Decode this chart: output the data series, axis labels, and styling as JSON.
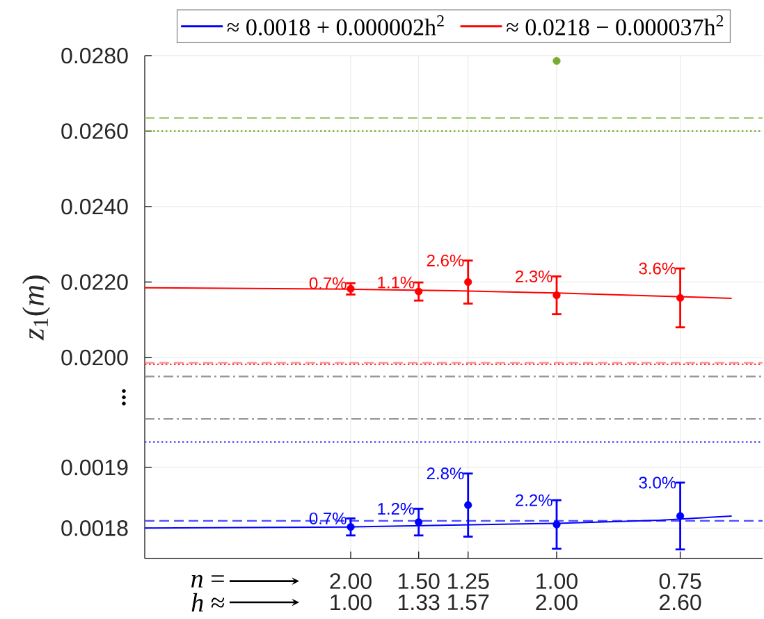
{
  "chart_data": [
    {
      "type": "scatter",
      "ylabel": "*z*$_{1}$(*m*)",
      "xlim": [
        0,
        3
      ],
      "xticks": [
        {
          "value": 1,
          "label": null
        },
        {
          "value": 1.33,
          "label": null
        },
        {
          "value": 1.57,
          "label": null
        },
        {
          "value": 2,
          "label": null
        },
        {
          "value": 2.6,
          "label": null
        }
      ],
      "ylim": [
        0.0195,
        0.028
      ],
      "yticks": [
        {
          "value": 0.02,
          "label": "0.0200"
        },
        {
          "value": 0.022,
          "label": "0.0220"
        },
        {
          "value": 0.024,
          "label": "0.0240"
        },
        {
          "value": 0.026,
          "label": "0.0260"
        },
        {
          "value": 0.028,
          "label": "0.0280"
        }
      ],
      "tick_labels": "y",
      "grid": true,
      "legend": "top",
      "series": [
        {
          "color": "#ff0000",
          "marker": "circle",
          "x": [
            1,
            1.33,
            1.57,
            2,
            2.6
          ],
          "values": [
            0.02182,
            0.02175,
            0.022,
            0.02165,
            0.02158
          ],
          "errors": [
            0.00015,
            0.00024,
            0.00057,
            0.0005,
            0.00078
          ]
        },
        {
          "type": "line",
          "name": "≈ 0.0218 − 0.000037h$^{2}$",
          "color": "#ff0000",
          "x": [
            0,
            1,
            1.5,
            2,
            2.5,
            2.85
          ],
          "values": [
            0.02185,
            0.02181,
            0.02177,
            0.02171,
            0.02163,
            0.02157
          ]
        },
        {
          "color": "#77ac30",
          "marker": "circle",
          "x": [
            2
          ],
          "values": [
            0.02786
          ]
        }
      ],
      "ref_lines": [
        {
          "axis": "y",
          "value": 0.02635,
          "color": "#9fcb70",
          "line_style": "dashed"
        },
        {
          "axis": "y",
          "value": 0.026,
          "color": "#77ac30",
          "line_style": "dotted"
        },
        {
          "axis": "y",
          "value": 0.01986,
          "color": "#ff8c8c",
          "line_style": "dashed"
        },
        {
          "axis": "y",
          "value": 0.01982,
          "color": "#ff3333",
          "line_style": "dotted"
        },
        {
          "axis": "y",
          "value": 0.0195,
          "color": "#999999",
          "line_style": "dashdot"
        }
      ],
      "annotations": [
        {
          "text": "0.7%",
          "x": 1,
          "y": 0.02197
        },
        {
          "text": "1.1%",
          "x": 1.33,
          "y": 0.02199
        },
        {
          "text": "2.6%",
          "x": 1.57,
          "y": 0.02257
        },
        {
          "text": "2.3%",
          "x": 2,
          "y": 0.02215
        },
        {
          "text": "3.6%",
          "x": 2.6,
          "y": 0.02236
        }
      ]
    },
    {
      "type": "scatter",
      "xlabel": "*h* ≈",
      "xlim": [
        0,
        3
      ],
      "xticks": [
        {
          "value": 1,
          "label": "1.00"
        },
        {
          "value": 1.33,
          "label": "1.33"
        },
        {
          "value": 1.57,
          "label": "1.57"
        },
        {
          "value": 2,
          "label": "2.00"
        },
        {
          "value": 2.6,
          "label": "2.60"
        }
      ],
      "ylim": [
        0.00175,
        0.00205
      ],
      "yticks": [
        0.0018,
        0.0019
      ],
      "grid": true,
      "legend": "top",
      "series": [
        {
          "color": "#0000ff",
          "marker": "circle",
          "x": [
            1,
            1.33,
            1.57,
            2,
            2.6
          ],
          "values": [
            0.001802,
            0.00181,
            0.001838,
            0.001806,
            0.00182
          ],
          "errors": [
            1.4e-05,
            2.2e-05,
            5.2e-05,
            4e-05,
            5.5e-05
          ]
        },
        {
          "type": "line",
          "name": "≈ 0.0018 + 0.000002h$^{2}$",
          "color": "#0000ff",
          "x": [
            0,
            1,
            1.5,
            2,
            2.5,
            2.85
          ],
          "values": [
            0.0018,
            0.001802,
            0.001805,
            0.001808,
            0.001813,
            0.00182
          ]
        }
      ],
      "ref_lines": [
        {
          "axis": "y",
          "value": 0.001812,
          "color": "#4d4dff",
          "line_style": "dashed"
        },
        {
          "axis": "y",
          "value": 0.001942,
          "color": "#4d4dff",
          "line_style": "dotted"
        },
        {
          "axis": "y",
          "value": 0.00198,
          "color": "#999999",
          "line_style": "dashdot"
        }
      ],
      "annotations": [
        {
          "text": "0.7%",
          "x": 1,
          "y": 0.001816
        },
        {
          "text": "1.2%",
          "x": 1.33,
          "y": 0.001832
        },
        {
          "text": "2.8%",
          "x": 1.57,
          "y": 0.00189
        },
        {
          "text": "2.2%",
          "x": 2,
          "y": 0.001846
        },
        {
          "text": "3.0%",
          "x": 2.6,
          "y": 0.001875
        },
        "*n* =",
        "2.00",
        "1.50",
        "1.25",
        "1.00",
        "0.75"
      ]
    }
  ]
}
